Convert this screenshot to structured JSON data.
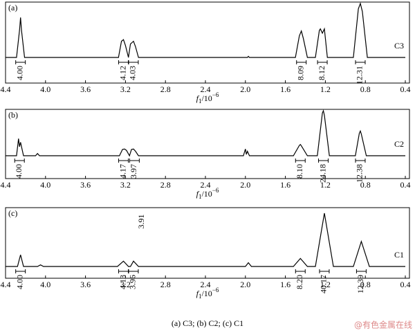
{
  "chart_data": [
    {
      "type": "line",
      "panel": "(a)",
      "sample": "C3",
      "x": [
        4.4,
        4.29,
        4.26,
        4.25,
        4.24,
        4.21,
        3.27,
        3.24,
        3.22,
        3.2,
        3.17,
        3.15,
        3.12,
        3.1,
        3.07,
        1.98,
        1.97,
        1.96,
        1.5,
        1.46,
        1.44,
        1.42,
        1.38,
        1.3,
        1.26,
        1.25,
        1.23,
        1.21,
        1.18,
        0.92,
        0.87,
        0.85,
        0.83,
        0.78,
        0.4
      ],
      "values": [
        0,
        0,
        0.5,
        0.74,
        0.5,
        0,
        0,
        0.3,
        0.33,
        0.22,
        0,
        0.25,
        0.3,
        0.2,
        0,
        0,
        0.02,
        0,
        0,
        0.4,
        0.49,
        0.35,
        0,
        0,
        0.5,
        0.53,
        0.45,
        0.53,
        0,
        0,
        0.9,
        1.0,
        0.85,
        0,
        0
      ],
      "integrals": {
        "x": [
          4.25,
          3.22,
          3.12,
          1.44,
          1.23,
          0.85
        ],
        "labels": [
          "4.00",
          "4.12",
          "4.03",
          "8.09",
          "8.12",
          "12.31"
        ]
      },
      "xlim": [
        4.4,
        0.4
      ],
      "ylim": [
        0,
        1
      ],
      "xticks": [
        4.4,
        {
          "value": 4,
          "label": "4.0"
        },
        3.6,
        3.2,
        2.8,
        2.4,
        {
          "value": 2,
          "label": "2.0"
        },
        1.6,
        1.2,
        0.8,
        0.4
      ],
      "xlabel": {
        "italic": "f",
        "sub": "1",
        "text": "/10",
        "sup": "−6"
      }
    },
    {
      "type": "line",
      "panel": "(b)",
      "sample": "C2",
      "x": [
        4.4,
        4.29,
        4.27,
        4.26,
        4.25,
        4.24,
        4.22,
        4.1,
        4.08,
        4.06,
        3.26,
        3.23,
        3.21,
        3.19,
        3.16,
        3.14,
        3.12,
        3.1,
        3.07,
        2.02,
        2.0,
        1.99,
        1.98,
        1.96,
        1.52,
        1.46,
        1.45,
        1.44,
        1.38,
        1.28,
        1.23,
        1.22,
        1.21,
        1.16,
        0.9,
        0.86,
        0.85,
        0.84,
        0.79,
        0.4
      ],
      "values": [
        0,
        0,
        0.38,
        0.2,
        0.3,
        0.2,
        0,
        0,
        0.05,
        0,
        0,
        0.14,
        0.15,
        0.12,
        0,
        0.14,
        0.15,
        0.1,
        0,
        0,
        0.15,
        0.03,
        0.1,
        0,
        0,
        0.23,
        0.25,
        0.22,
        0,
        0,
        0.95,
        1.0,
        0.9,
        0,
        0,
        0.5,
        0.55,
        0.48,
        0,
        0
      ],
      "integrals": {
        "x": [
          4.26,
          3.22,
          3.11,
          1.45,
          1.22,
          0.85
        ],
        "labels": [
          "4.00",
          "4.17",
          "3.97",
          "8.10",
          "24.18",
          "12.38"
        ]
      },
      "xlim": [
        4.4,
        0.4
      ],
      "ylim": [
        0,
        1
      ],
      "xticks": [
        4.4,
        {
          "value": 4,
          "label": "4.0"
        },
        3.6,
        3.2,
        2.8,
        2.4,
        {
          "value": 2,
          "label": "2.0"
        },
        1.6,
        1.2,
        0.8,
        0.4
      ],
      "xlabel": {
        "italic": "f",
        "sub": "1",
        "text": "/10",
        "sup": "−6"
      }
    },
    {
      "type": "line",
      "panel": "(c)",
      "sample": "C1",
      "annotation": "3.91",
      "x": [
        4.4,
        4.28,
        4.25,
        4.22,
        4.08,
        4.05,
        4.02,
        3.28,
        3.22,
        3.17,
        3.15,
        3.12,
        3.07,
        2.0,
        1.97,
        1.94,
        1.52,
        1.45,
        1.38,
        1.3,
        1.21,
        1.12,
        0.92,
        0.84,
        0.76,
        0.4
      ],
      "values": [
        0,
        0,
        0.22,
        0,
        0,
        0.03,
        0,
        0,
        0.1,
        0,
        0,
        0.1,
        0,
        0,
        0.07,
        0,
        0,
        0.15,
        0,
        0,
        1.0,
        0,
        0,
        0.47,
        0,
        0
      ],
      "integrals": {
        "x": [
          4.25,
          3.22,
          3.12,
          1.45,
          1.21,
          0.84
        ],
        "labels": [
          "4.00",
          "4.13",
          "3.96",
          "8.20",
          "40.17",
          "12.39"
        ]
      },
      "xlim": [
        4.4,
        0.4
      ],
      "ylim": [
        0,
        1
      ],
      "xticks": [
        4.4,
        {
          "value": 4,
          "label": "4.0"
        },
        3.6,
        3.2,
        2.8,
        2.4,
        {
          "value": 2,
          "label": "2.0"
        },
        1.6,
        1.2,
        0.8,
        0.4
      ],
      "xlabel": {
        "italic": "f",
        "sub": "1",
        "text": "/10",
        "sup": "−6"
      }
    }
  ],
  "caption": "(a) C3; (b) C2; (c) C1",
  "watermark": "@有色金属在线"
}
